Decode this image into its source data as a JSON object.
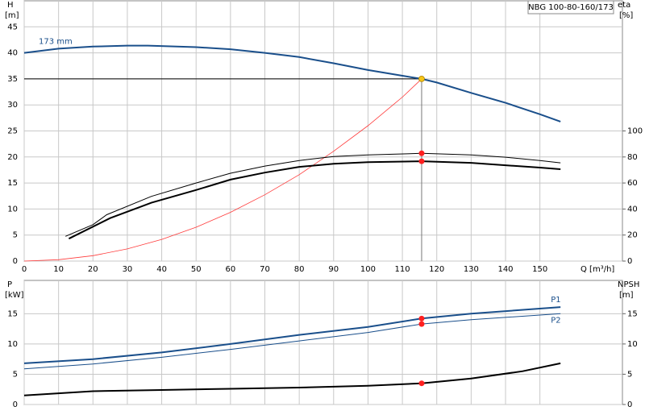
{
  "chart_data": [
    {
      "type": "line",
      "title": "NBG 100-80-160/173",
      "xlabel": "Q [m³/h]",
      "ylabel": "H",
      "yunit": "[m]",
      "y2label": "eta",
      "y2unit": "[%]",
      "xlim": [
        0,
        174
      ],
      "xticks": [
        0,
        10,
        20,
        30,
        40,
        50,
        60,
        70,
        80,
        90,
        100,
        110,
        120,
        130,
        140,
        150
      ],
      "ylim": [
        0,
        50
      ],
      "yticks": [
        0,
        5,
        10,
        15,
        20,
        25,
        30,
        35,
        40,
        45
      ],
      "y2lim": [
        0,
        200
      ],
      "y2ticks": [
        0,
        20,
        40,
        60,
        80,
        100
      ],
      "grid": true,
      "duty_q": 115.6,
      "series": [
        {
          "name": "173 mm",
          "color": "#1a4f8b",
          "width": 2,
          "x": [
            0,
            10,
            20,
            30,
            36,
            50,
            60,
            70,
            80,
            90,
            100,
            110,
            115.6,
            120,
            130,
            140,
            150,
            156
          ],
          "values": [
            40,
            40.8,
            41.2,
            41.4,
            41.4,
            41.1,
            40.7,
            40,
            39.2,
            38,
            36.7,
            35.6,
            35,
            34.3,
            32.3,
            30.4,
            28.2,
            26.8
          ],
          "duty_value": 35,
          "duty_color": "#f5c518"
        },
        {
          "color": "#ff3b3b",
          "width": 0.8,
          "x": [
            0,
            10,
            20,
            30,
            40,
            50,
            60,
            70,
            80,
            90,
            100,
            110,
            115.6
          ],
          "values": [
            0,
            0.26,
            1.04,
            2.34,
            4.16,
            6.5,
            9.36,
            12.74,
            16.6,
            21.1,
            26,
            31.5,
            35
          ]
        },
        {
          "color": "#000000",
          "width": 1,
          "axis": "y2",
          "x": [
            12,
            20,
            24,
            37,
            50,
            60,
            70,
            80,
            90,
            100,
            115.6,
            130,
            140,
            150,
            156
          ],
          "values": [
            19,
            28,
            35.6,
            49.7,
            60,
            67.5,
            73,
            77.3,
            80.4,
            81.6,
            82.8,
            81.6,
            79.8,
            77.3,
            75.5
          ],
          "duty_value": 82.8,
          "duty_color": "#ff2020"
        },
        {
          "color": "#000000",
          "width": 2,
          "axis": "y2",
          "x": [
            13,
            25,
            37,
            50,
            60,
            70,
            80,
            90,
            100,
            115.6,
            130,
            140,
            150,
            156
          ],
          "values": [
            17.2,
            33,
            44.8,
            54.6,
            62.6,
            68,
            72.4,
            74.8,
            76,
            76.7,
            75.5,
            73.6,
            71.8,
            70.6
          ],
          "duty_value": 76.7,
          "duty_color": "#ff2020"
        }
      ]
    },
    {
      "type": "line",
      "ylabel": "P",
      "yunit": "[kW]",
      "y2label": "NPSH",
      "y2unit": "[m]",
      "xlim": [
        0,
        174
      ],
      "xticks": [
        0,
        10,
        20,
        30,
        40,
        50,
        60,
        70,
        80,
        90,
        100,
        110,
        120,
        130,
        140,
        150
      ],
      "show_xtick_labels": false,
      "ylim": [
        0,
        20.5
      ],
      "yticks": [
        0,
        5,
        10,
        15
      ],
      "y2lim": [
        0,
        20.5
      ],
      "y2ticks": [
        0,
        5,
        10,
        15
      ],
      "grid": true,
      "duty_q": 115.6,
      "series": [
        {
          "name": "P1",
          "color": "#1a4f8b",
          "width": 2,
          "x": [
            0,
            20,
            40,
            60,
            80,
            100,
            115.6,
            130,
            156
          ],
          "values": [
            6.8,
            7.5,
            8.6,
            10,
            11.5,
            12.8,
            14.2,
            15,
            16.1
          ],
          "duty_value": 14.2,
          "duty_color": "#ff2020"
        },
        {
          "name": "P2",
          "color": "#1a4f8b",
          "width": 1,
          "x": [
            0,
            20,
            40,
            60,
            80,
            100,
            115.6,
            130,
            156
          ],
          "values": [
            5.9,
            6.7,
            7.8,
            9.1,
            10.5,
            11.9,
            13.3,
            14,
            15
          ],
          "duty_value": 13.3,
          "duty_color": "#ff2020"
        },
        {
          "color": "#000000",
          "width": 2,
          "axis": "y2",
          "x": [
            0,
            20,
            40,
            60,
            80,
            100,
            115.6,
            130,
            145,
            156
          ],
          "values": [
            1.5,
            2.2,
            2.4,
            2.6,
            2.8,
            3.1,
            3.5,
            4.3,
            5.5,
            6.8
          ],
          "duty_value": 3.5,
          "duty_color": "#ff2020"
        }
      ]
    }
  ]
}
